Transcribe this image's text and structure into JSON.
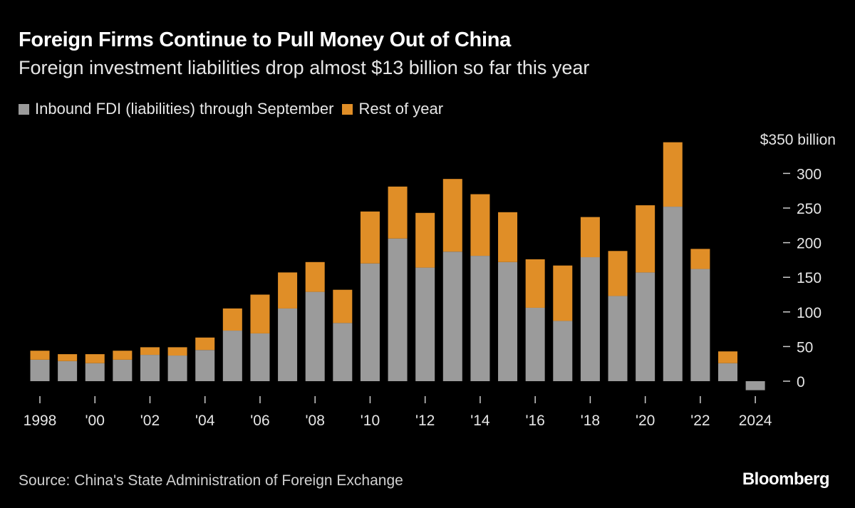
{
  "title": "Foreign Firms Continue to Pull Money Out of China",
  "subtitle": "Foreign investment liabilities drop almost $13 billion so far this year",
  "source": "Source: China's State Administration of Foreign Exchange",
  "logo": "Bloomberg",
  "colors": {
    "background": "#000000",
    "through_september": "#9b9b9b",
    "rest_of_year": "#e08e27"
  },
  "chart_data": {
    "type": "bar",
    "stacked": true,
    "title": "Foreign Firms Continue to Pull Money Out of China",
    "subtitle": "Foreign investment liabilities drop almost $13 billion so far this year",
    "legend_position": "top-left",
    "grid": false,
    "y_unit_label": "$350 billion",
    "ylim": [
      -15,
      350
    ],
    "y_ticks": [
      0,
      50,
      100,
      150,
      200,
      250,
      300
    ],
    "y_tick_labels": [
      "0",
      "50",
      "100",
      "150",
      "200",
      "250",
      "300"
    ],
    "x": [
      1998,
      1999,
      2000,
      2001,
      2002,
      2003,
      2004,
      2005,
      2006,
      2007,
      2008,
      2009,
      2010,
      2011,
      2012,
      2013,
      2014,
      2015,
      2016,
      2017,
      2018,
      2019,
      2020,
      2021,
      2022,
      2023,
      2024
    ],
    "x_tick_labels": [
      {
        "year": 1998,
        "label": "1998"
      },
      {
        "year": 2000,
        "label": "'00"
      },
      {
        "year": 2002,
        "label": "'02"
      },
      {
        "year": 2004,
        "label": "'04"
      },
      {
        "year": 2006,
        "label": "'06"
      },
      {
        "year": 2008,
        "label": "'08"
      },
      {
        "year": 2010,
        "label": "'10"
      },
      {
        "year": 2012,
        "label": "'12"
      },
      {
        "year": 2014,
        "label": "'14"
      },
      {
        "year": 2016,
        "label": "'16"
      },
      {
        "year": 2018,
        "label": "'18"
      },
      {
        "year": 2020,
        "label": "'20"
      },
      {
        "year": 2022,
        "label": "'22"
      },
      {
        "year": 2024,
        "label": "2024"
      }
    ],
    "series": [
      {
        "name": "Inbound FDI (liabilities) through September",
        "color": "#9b9b9b",
        "values": [
          31,
          29,
          26,
          31,
          38,
          37,
          45,
          73,
          69,
          105,
          129,
          84,
          170,
          206,
          164,
          187,
          181,
          172,
          106,
          87,
          179,
          123,
          157,
          252,
          162,
          26,
          -13
        ]
      },
      {
        "name": "Rest of year",
        "color": "#e08e27",
        "values": [
          13,
          10,
          13,
          13,
          11,
          12,
          18,
          32,
          56,
          52,
          43,
          48,
          75,
          75,
          79,
          105,
          89,
          72,
          70,
          80,
          58,
          65,
          97,
          93,
          29,
          17,
          null
        ]
      }
    ]
  }
}
